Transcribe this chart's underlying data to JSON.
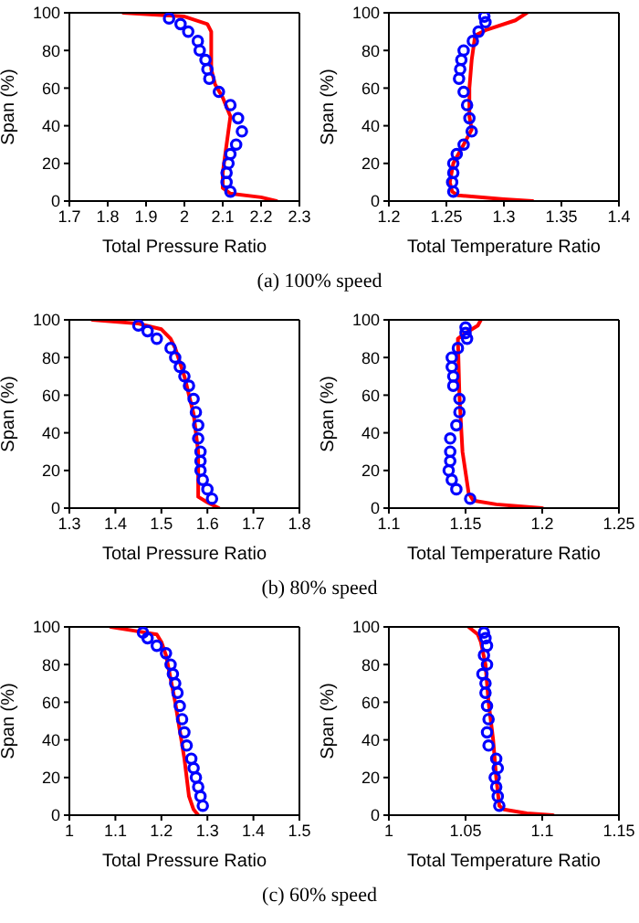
{
  "chart_data": [
    {
      "type": "line",
      "xlabel": "Total Pressure Ratio",
      "ylabel": "Span (%)",
      "annotations": [
        "(a) 100% speed"
      ],
      "xlim": [
        1.7,
        2.3
      ],
      "xticks": [
        1.7,
        1.8,
        1.9,
        2,
        2.1,
        2.2,
        2.3
      ],
      "ylim": [
        0,
        100
      ],
      "yticks": [
        0,
        20,
        40,
        60,
        80,
        100
      ],
      "series": [
        {
          "color": "#ff0000",
          "marker": "none",
          "line_style": "solid",
          "x": [
            2.24,
            2.2,
            2.12,
            2.1,
            2.1,
            2.11,
            2.12,
            2.1,
            2.08,
            2.07,
            2.07,
            2.06,
            2.0,
            1.84
          ],
          "values": [
            0,
            2,
            4,
            7,
            15,
            30,
            45,
            55,
            62,
            70,
            90,
            94,
            98,
            100
          ]
        },
        {
          "type": "scatter",
          "color": "#0000ff",
          "marker": "circle",
          "x": [
            1.96,
            1.99,
            2.01,
            2.035,
            2.04,
            2.055,
            2.06,
            2.065,
            2.09,
            2.12,
            2.14,
            2.15,
            2.135,
            2.12,
            2.115,
            2.11,
            2.11,
            2.12
          ],
          "values": [
            97,
            94,
            90,
            85,
            80,
            75,
            70,
            65,
            58,
            51,
            44,
            37,
            30,
            25,
            20,
            15,
            10,
            5
          ]
        }
      ]
    },
    {
      "type": "line",
      "xlabel": "Total Temperature Ratio",
      "ylabel": "Span (%)",
      "xlim": [
        1.2,
        1.4
      ],
      "xticks": [
        1.2,
        1.25,
        1.3,
        1.35,
        1.4
      ],
      "ylim": [
        0,
        100
      ],
      "yticks": [
        0,
        20,
        40,
        60,
        80,
        100
      ],
      "series": [
        {
          "color": "#ff0000",
          "marker": "none",
          "line_style": "solid",
          "x": [
            1.325,
            1.3,
            1.26,
            1.255,
            1.253,
            1.256,
            1.265,
            1.272,
            1.27,
            1.27,
            1.272,
            1.275,
            1.285,
            1.31,
            1.32
          ],
          "values": [
            0,
            1,
            3,
            5,
            10,
            20,
            30,
            38,
            45,
            60,
            75,
            88,
            91,
            96,
            100
          ]
        },
        {
          "type": "scatter",
          "color": "#0000ff",
          "marker": "circle",
          "x": [
            1.283,
            1.284,
            1.278,
            1.273,
            1.265,
            1.263,
            1.262,
            1.261,
            1.265,
            1.268,
            1.27,
            1.272,
            1.265,
            1.259,
            1.256,
            1.256,
            1.255,
            1.256
          ],
          "values": [
            98,
            95,
            90,
            85,
            80,
            75,
            70,
            65,
            58,
            51,
            44,
            37,
            30,
            25,
            20,
            15,
            10,
            5
          ]
        }
      ]
    },
    {
      "type": "line",
      "xlabel": "Total Pressure Ratio",
      "ylabel": "Span (%)",
      "annotations": [
        "(b) 80% speed"
      ],
      "xlim": [
        1.3,
        1.8
      ],
      "xticks": [
        1.3,
        1.4,
        1.5,
        1.6,
        1.7,
        1.8
      ],
      "ylim": [
        0,
        100
      ],
      "yticks": [
        0,
        20,
        40,
        60,
        80,
        100
      ],
      "series": [
        {
          "color": "#ff0000",
          "marker": "none",
          "line_style": "solid",
          "x": [
            1.625,
            1.6,
            1.58,
            1.58,
            1.57,
            1.55,
            1.53,
            1.52,
            1.5,
            1.45,
            1.35
          ],
          "values": [
            0,
            3,
            6,
            30,
            50,
            70,
            85,
            90,
            95,
            98,
            100
          ]
        },
        {
          "type": "scatter",
          "color": "#0000ff",
          "marker": "circle",
          "x": [
            1.45,
            1.47,
            1.49,
            1.52,
            1.53,
            1.54,
            1.55,
            1.56,
            1.57,
            1.575,
            1.58,
            1.58,
            1.585,
            1.585,
            1.585,
            1.59,
            1.6,
            1.61
          ],
          "values": [
            97,
            94,
            90,
            85,
            80,
            75,
            70,
            65,
            58,
            51,
            44,
            37,
            30,
            25,
            20,
            15,
            10,
            5
          ]
        }
      ]
    },
    {
      "type": "line",
      "xlabel": "Total Temperature Ratio",
      "ylabel": "Span (%)",
      "xlim": [
        1.1,
        1.25
      ],
      "xticks": [
        1.1,
        1.15,
        1.2,
        1.25
      ],
      "ylim": [
        0,
        100
      ],
      "yticks": [
        0,
        20,
        40,
        60,
        80,
        100
      ],
      "series": [
        {
          "color": "#ff0000",
          "marker": "none",
          "line_style": "solid",
          "x": [
            1.2,
            1.17,
            1.155,
            1.152,
            1.148,
            1.146,
            1.145,
            1.15,
            1.158,
            1.16
          ],
          "values": [
            0,
            2,
            4,
            8,
            30,
            60,
            90,
            93,
            97,
            100
          ]
        },
        {
          "type": "scatter",
          "color": "#0000ff",
          "marker": "circle",
          "x": [
            1.15,
            1.15,
            1.151,
            1.145,
            1.141,
            1.141,
            1.142,
            1.142,
            1.146,
            1.146,
            1.144,
            1.14,
            1.14,
            1.14,
            1.139,
            1.141,
            1.144,
            1.153
          ],
          "values": [
            96,
            93,
            90,
            85,
            80,
            75,
            70,
            65,
            58,
            51,
            44,
            37,
            30,
            25,
            20,
            15,
            10,
            5
          ]
        }
      ]
    },
    {
      "type": "line",
      "xlabel": "Total Pressure Ratio",
      "ylabel": "Span (%)",
      "annotations": [
        "(c) 60% speed"
      ],
      "xlim": [
        1,
        1.5
      ],
      "xticks": [
        1,
        1.1,
        1.2,
        1.3,
        1.4,
        1.5
      ],
      "ylim": [
        0,
        100
      ],
      "yticks": [
        0,
        20,
        40,
        60,
        80,
        100
      ],
      "series": [
        {
          "color": "#ff0000",
          "marker": "none",
          "line_style": "solid",
          "x": [
            1.28,
            1.27,
            1.26,
            1.25,
            1.23,
            1.21,
            1.2,
            1.19,
            1.14,
            1.09
          ],
          "values": [
            0,
            3,
            10,
            30,
            60,
            85,
            92,
            96,
            98,
            100
          ]
        },
        {
          "type": "scatter",
          "color": "#0000ff",
          "marker": "circle",
          "x": [
            1.16,
            1.17,
            1.19,
            1.21,
            1.22,
            1.225,
            1.23,
            1.235,
            1.24,
            1.245,
            1.25,
            1.255,
            1.265,
            1.27,
            1.275,
            1.28,
            1.285,
            1.29
          ],
          "values": [
            97,
            94,
            90,
            86,
            80,
            75,
            70,
            65,
            58,
            51,
            44,
            37,
            30,
            25,
            20,
            15,
            10,
            5
          ]
        }
      ]
    },
    {
      "type": "line",
      "xlabel": "Total Temperature Ratio",
      "ylabel": "Span (%)",
      "xlim": [
        1,
        1.15
      ],
      "xticks": [
        1,
        1.05,
        1.1,
        1.15
      ],
      "ylim": [
        0,
        100
      ],
      "yticks": [
        0,
        20,
        40,
        60,
        80,
        100
      ],
      "series": [
        {
          "color": "#ff0000",
          "marker": "none",
          "line_style": "solid",
          "x": [
            1.107,
            1.09,
            1.075,
            1.072,
            1.07,
            1.068,
            1.065,
            1.063,
            1.06,
            1.058,
            1.052
          ],
          "values": [
            0,
            1,
            3,
            5,
            20,
            40,
            60,
            80,
            92,
            96,
            100
          ]
        },
        {
          "type": "scatter",
          "color": "#0000ff",
          "marker": "circle",
          "x": [
            1.062,
            1.063,
            1.064,
            1.062,
            1.064,
            1.061,
            1.063,
            1.063,
            1.064,
            1.065,
            1.064,
            1.065,
            1.07,
            1.071,
            1.069,
            1.07,
            1.071,
            1.072
          ],
          "values": [
            97,
            94,
            90,
            85,
            80,
            75,
            70,
            65,
            58,
            51,
            44,
            37,
            30,
            25,
            20,
            15,
            10,
            5
          ]
        }
      ]
    }
  ]
}
